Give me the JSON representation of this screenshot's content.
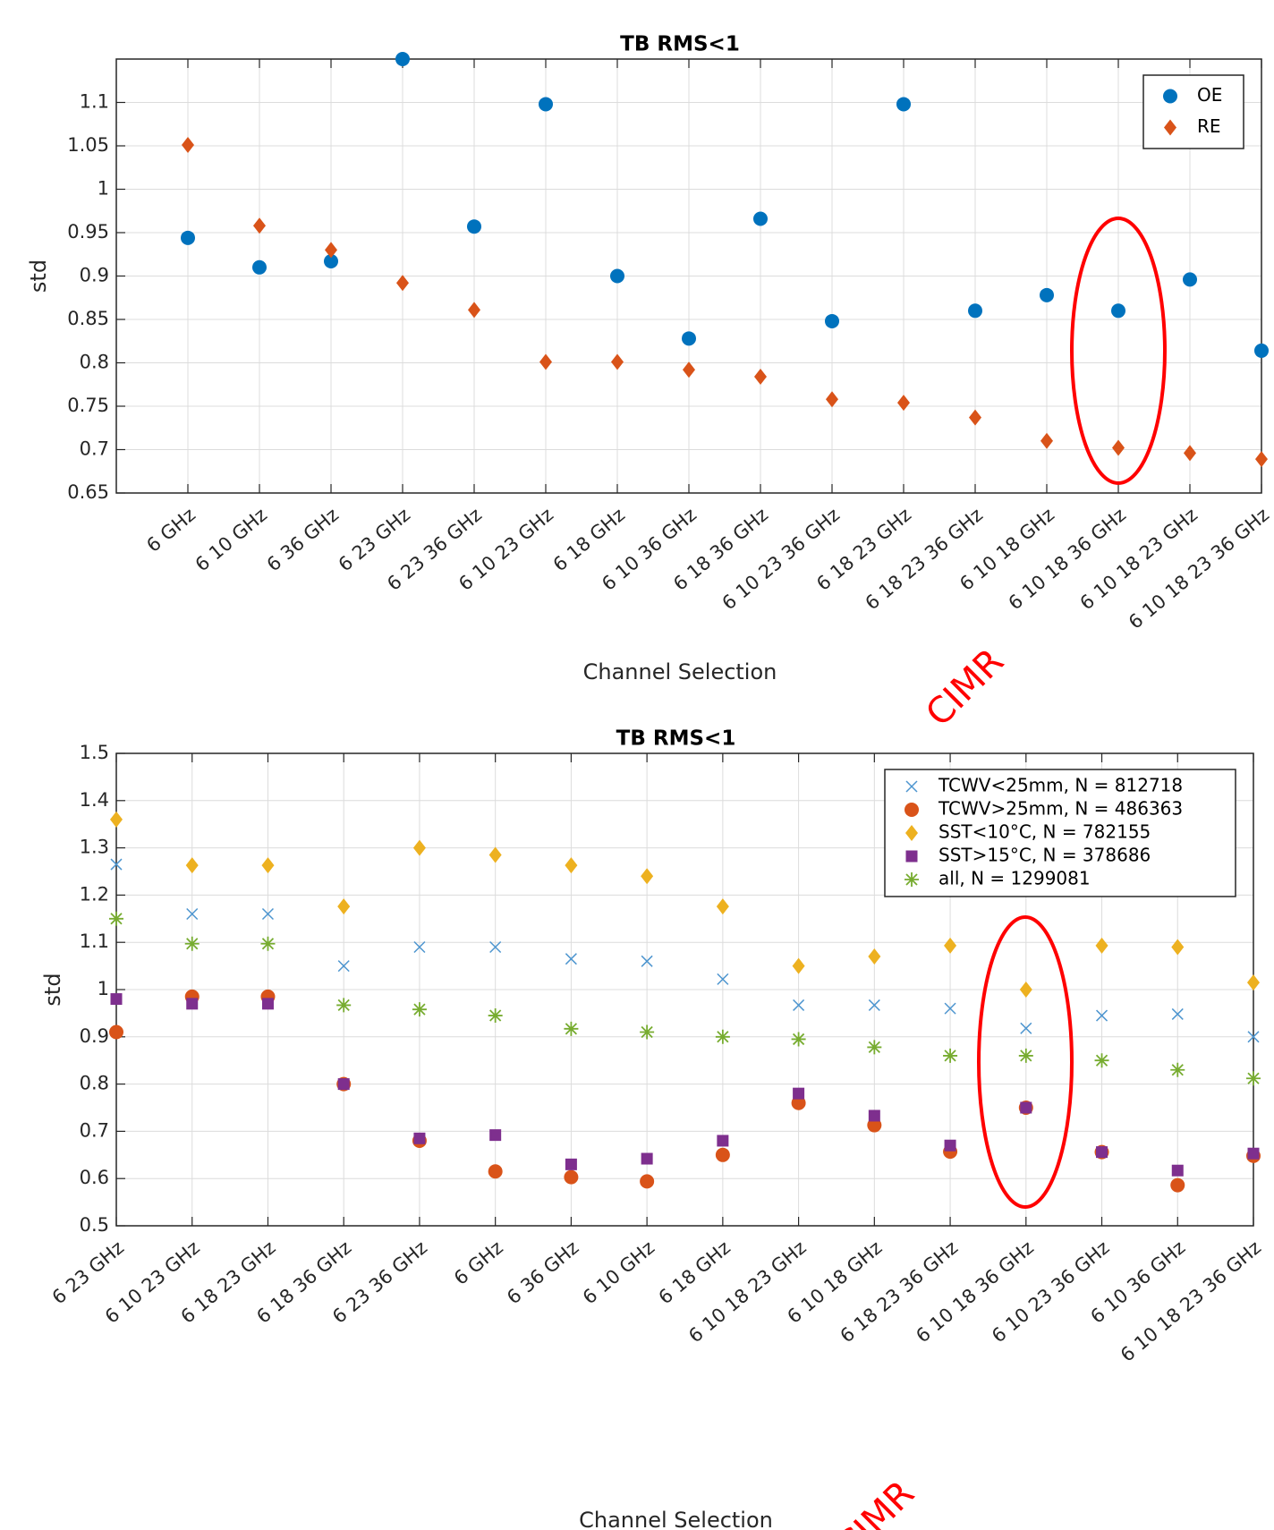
{
  "chart_data": [
    {
      "type": "scatter",
      "title": "TB RMS<1",
      "xlabel": "Channel Selection",
      "ylabel": "std",
      "annotation": "CIMR",
      "categories": [
        "6 GHz",
        "6 10 GHz",
        "6 36 GHz",
        "6 23 GHz",
        "6 23 36 GHz",
        "6 10 23 GHz",
        "6 18 GHz",
        "6 10 36 GHz",
        "6 18 36 GHz",
        "6 10 23 36 GHz",
        "6 18 23 GHz",
        "6 18 23 36 GHz",
        "6 10 18 GHz",
        "6 10 18 36 GHz",
        "6 10 18 23 GHz",
        "6 10 18 23 36 GHz"
      ],
      "series": [
        {
          "name": "OE",
          "color": "#0072bd",
          "marker": "o",
          "values": [
            0.944,
            0.91,
            0.917,
            1.15,
            0.957,
            1.098,
            0.9,
            0.828,
            0.966,
            0.848,
            1.098,
            0.86,
            0.878,
            0.86,
            0.896,
            0.814
          ]
        },
        {
          "name": "RE",
          "color": "#d95319",
          "marker": "d",
          "values": [
            1.051,
            0.958,
            0.93,
            0.892,
            0.861,
            0.801,
            0.801,
            0.792,
            0.784,
            0.758,
            0.754,
            0.737,
            0.71,
            0.702,
            0.696,
            0.689
          ]
        }
      ],
      "ylim": [
        0.65,
        1.15
      ],
      "yticks": [
        0.65,
        0.7,
        0.75,
        0.8,
        0.85,
        0.9,
        0.95,
        1,
        1.05,
        1.1
      ],
      "grid": true,
      "legend": "upper right"
    },
    {
      "type": "scatter",
      "title": "TB RMS<1",
      "xlabel": "Channel Selection",
      "ylabel": "std",
      "annotation": "CIMR",
      "categories": [
        "6 23 GHz",
        "6 10 23 GHz",
        "6 18 23 GHz",
        "6 18 36 GHz",
        "6 23 36 GHz",
        "6 GHz",
        "6 36 GHz",
        "6 10 GHz",
        "6 18 GHz",
        "6 10 18 23 GHz",
        "6 10 18 GHz",
        "6 18 23 36 GHz",
        "6 10 18 36 GHz",
        "6 10 23 36 GHz",
        "6 10 36 GHz",
        "6 10 18 23 36 GHz"
      ],
      "series": [
        {
          "name": "TCWV<25mm, N = 812718",
          "color": "#4d95cf",
          "marker": "x",
          "values": [
            1.265,
            1.16,
            1.16,
            1.05,
            1.09,
            1.09,
            1.065,
            1.06,
            1.022,
            0.967,
            0.967,
            0.96,
            0.918,
            0.945,
            0.948,
            0.9
          ]
        },
        {
          "name": "TCWV>25mm, N = 486363",
          "color": "#d95319",
          "marker": "o",
          "values": [
            0.91,
            0.985,
            0.985,
            0.8,
            0.68,
            0.615,
            0.603,
            0.594,
            0.65,
            0.76,
            0.713,
            0.657,
            0.75,
            0.656,
            0.586,
            0.648
          ]
        },
        {
          "name": "SST<10°C, N = 782155",
          "color": "#edb120",
          "marker": "d",
          "values": [
            1.36,
            1.263,
            1.263,
            1.176,
            1.3,
            1.285,
            1.263,
            1.24,
            1.176,
            1.05,
            1.07,
            1.093,
            1.0,
            1.093,
            1.09,
            1.015
          ]
        },
        {
          "name": "SST>15°C, N = 378686",
          "color": "#7e2f8e",
          "marker": "s",
          "values": [
            0.98,
            0.97,
            0.97,
            0.8,
            0.685,
            0.692,
            0.63,
            0.642,
            0.68,
            0.78,
            0.733,
            0.67,
            0.75,
            0.656,
            0.617,
            0.653
          ]
        },
        {
          "name": "all, N = 1299081",
          "color": "#77ac30",
          "marker": "*",
          "values": [
            1.15,
            1.097,
            1.097,
            0.967,
            0.958,
            0.945,
            0.917,
            0.91,
            0.9,
            0.895,
            0.878,
            0.86,
            0.86,
            0.85,
            0.83,
            0.812
          ]
        }
      ],
      "ylim": [
        0.5,
        1.5
      ],
      "yticks": [
        0.5,
        0.6,
        0.7,
        0.8,
        0.9,
        1,
        1.1,
        1.2,
        1.3,
        1.4,
        1.5
      ],
      "grid": true,
      "legend": "upper right"
    }
  ]
}
